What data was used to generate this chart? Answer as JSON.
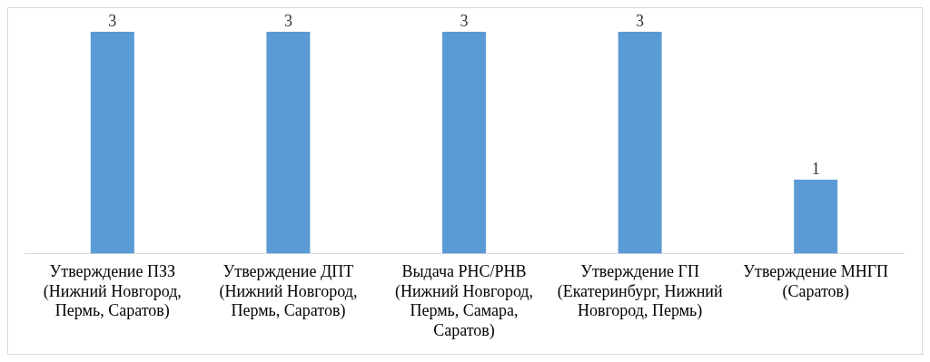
{
  "chart_data": {
    "type": "bar",
    "categories": [
      "Утверждение ПЗЗ (Нижний Новгород, Пермь, Саратов)",
      "Утверждение ДПТ (Нижний Новгород, Пермь, Саратов)",
      "Выдача РНС/РНВ (Нижний Новгород, Пермь, Самара, Саратов)",
      "Утверждение ГП (Екатеринбург, Нижний Новгород, Пермь)",
      "Утверждение МНГП (Саратов)"
    ],
    "values": [
      3,
      3,
      3,
      3,
      1
    ],
    "color": "#5b9bd5",
    "data_labels": true,
    "relative": false,
    "grid": false,
    "legend": false
  }
}
